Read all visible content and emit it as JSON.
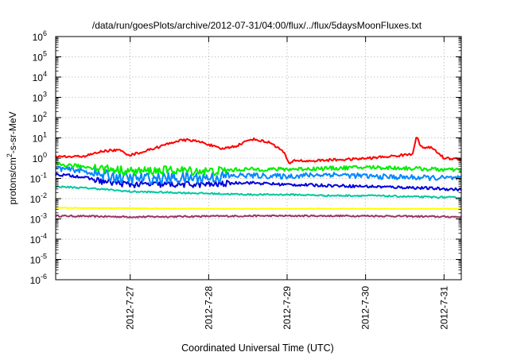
{
  "chart_data": {
    "type": "line",
    "title": "/data/run/goesPlots/archive/2012-07-31/04:00/flux/../flux/5daysMoonFluxes.txt",
    "xlabel": "Coordinated Universal Time (UTC)",
    "ylabel": {
      "pre": "protons/cm",
      "sup": "2",
      "post": "-s-sr-MeV"
    },
    "yscale": "log",
    "ylim_exp": [
      -6,
      6
    ],
    "yticks": [
      {
        "base": "10",
        "exp": "-6"
      },
      {
        "base": "10",
        "exp": "-5"
      },
      {
        "base": "10",
        "exp": "-4"
      },
      {
        "base": "10",
        "exp": "-3"
      },
      {
        "base": "10",
        "exp": "-2"
      },
      {
        "base": "10",
        "exp": "-1"
      },
      {
        "base": "10",
        "exp": "0"
      },
      {
        "base": "10",
        "exp": "1"
      },
      {
        "base": "10",
        "exp": "2"
      },
      {
        "base": "10",
        "exp": "3"
      },
      {
        "base": "10",
        "exp": "4"
      },
      {
        "base": "10",
        "exp": "5"
      },
      {
        "base": "10",
        "exp": "6"
      }
    ],
    "xlim_days": [
      0,
      5.17
    ],
    "xticks": [
      {
        "label": "2012-7-27",
        "day": 0.95
      },
      {
        "label": "2012-7-28",
        "day": 1.95
      },
      {
        "label": "2012-7-29",
        "day": 2.95
      },
      {
        "label": "2012-7-30",
        "day": 3.95
      },
      {
        "label": "2012-7-31",
        "day": 4.95
      }
    ],
    "grid": true,
    "series": [
      {
        "color": "#ff0000",
        "noise": 0.06,
        "points": [
          [
            0.0,
            0.08
          ],
          [
            0.2,
            0.06
          ],
          [
            0.4,
            0.12
          ],
          [
            0.6,
            0.35
          ],
          [
            0.8,
            0.4
          ],
          [
            0.95,
            0.15
          ],
          [
            1.1,
            0.3
          ],
          [
            1.35,
            0.6
          ],
          [
            1.55,
            0.85
          ],
          [
            1.7,
            0.9
          ],
          [
            1.9,
            0.75
          ],
          [
            2.1,
            0.45
          ],
          [
            2.3,
            0.6
          ],
          [
            2.5,
            0.95
          ],
          [
            2.75,
            0.75
          ],
          [
            2.92,
            0.25
          ],
          [
            2.97,
            -0.3
          ],
          [
            3.05,
            -0.1
          ],
          [
            3.2,
            -0.15
          ],
          [
            3.45,
            -0.1
          ],
          [
            3.8,
            -0.05
          ],
          [
            4.0,
            0.0
          ],
          [
            4.3,
            0.1
          ],
          [
            4.55,
            0.2
          ],
          [
            4.6,
            1.15
          ],
          [
            4.65,
            0.55
          ],
          [
            4.8,
            0.5
          ],
          [
            4.95,
            0.0
          ],
          [
            5.17,
            -0.05
          ]
        ]
      },
      {
        "color": "#00ee00",
        "noise": 0.1,
        "points": [
          [
            0.0,
            -0.3
          ],
          [
            0.3,
            -0.4
          ],
          [
            0.6,
            -0.5
          ],
          [
            0.95,
            -0.65
          ],
          [
            1.5,
            -0.6
          ],
          [
            2.0,
            -0.65
          ],
          [
            2.4,
            -0.55
          ],
          [
            2.9,
            -0.55
          ],
          [
            3.5,
            -0.5
          ],
          [
            4.0,
            -0.45
          ],
          [
            4.5,
            -0.5
          ],
          [
            5.17,
            -0.6
          ]
        ]
      },
      {
        "color": "#0088ff",
        "noise": 0.13,
        "points": [
          [
            0.0,
            -0.5
          ],
          [
            0.3,
            -0.6
          ],
          [
            0.6,
            -0.85
          ],
          [
            0.95,
            -1.0
          ],
          [
            1.5,
            -1.0
          ],
          [
            2.0,
            -0.95
          ],
          [
            2.4,
            -0.85
          ],
          [
            2.9,
            -0.9
          ],
          [
            3.5,
            -0.8
          ],
          [
            4.0,
            -0.9
          ],
          [
            4.5,
            -0.95
          ],
          [
            5.17,
            -1.0
          ]
        ]
      },
      {
        "color": "#0000dd",
        "noise": 0.07,
        "points": [
          [
            0.0,
            -0.8
          ],
          [
            0.3,
            -0.9
          ],
          [
            0.6,
            -1.15
          ],
          [
            0.95,
            -1.3
          ],
          [
            1.5,
            -1.3
          ],
          [
            2.0,
            -1.3
          ],
          [
            2.4,
            -1.2
          ],
          [
            2.9,
            -1.3
          ],
          [
            3.5,
            -1.35
          ],
          [
            4.0,
            -1.4
          ],
          [
            4.5,
            -1.45
          ],
          [
            5.17,
            -1.55
          ]
        ]
      },
      {
        "color": "#00c8a0",
        "noise": 0.04,
        "points": [
          [
            0.0,
            -1.4
          ],
          [
            0.5,
            -1.5
          ],
          [
            0.95,
            -1.65
          ],
          [
            1.5,
            -1.7
          ],
          [
            2.0,
            -1.75
          ],
          [
            2.5,
            -1.8
          ],
          [
            3.0,
            -1.8
          ],
          [
            3.5,
            -1.85
          ],
          [
            4.0,
            -1.85
          ],
          [
            4.5,
            -1.9
          ],
          [
            5.17,
            -1.95
          ]
        ]
      },
      {
        "color": "#ffff00",
        "noise": 0.015,
        "points": [
          [
            0.0,
            -2.45
          ],
          [
            2.0,
            -2.5
          ],
          [
            3.5,
            -2.5
          ],
          [
            5.17,
            -2.5
          ]
        ]
      },
      {
        "color": "#993366",
        "noise": 0.04,
        "points": [
          [
            0.0,
            -2.85
          ],
          [
            1.0,
            -2.9
          ],
          [
            2.5,
            -2.85
          ],
          [
            4.0,
            -2.85
          ],
          [
            5.17,
            -2.9
          ]
        ]
      }
    ]
  }
}
